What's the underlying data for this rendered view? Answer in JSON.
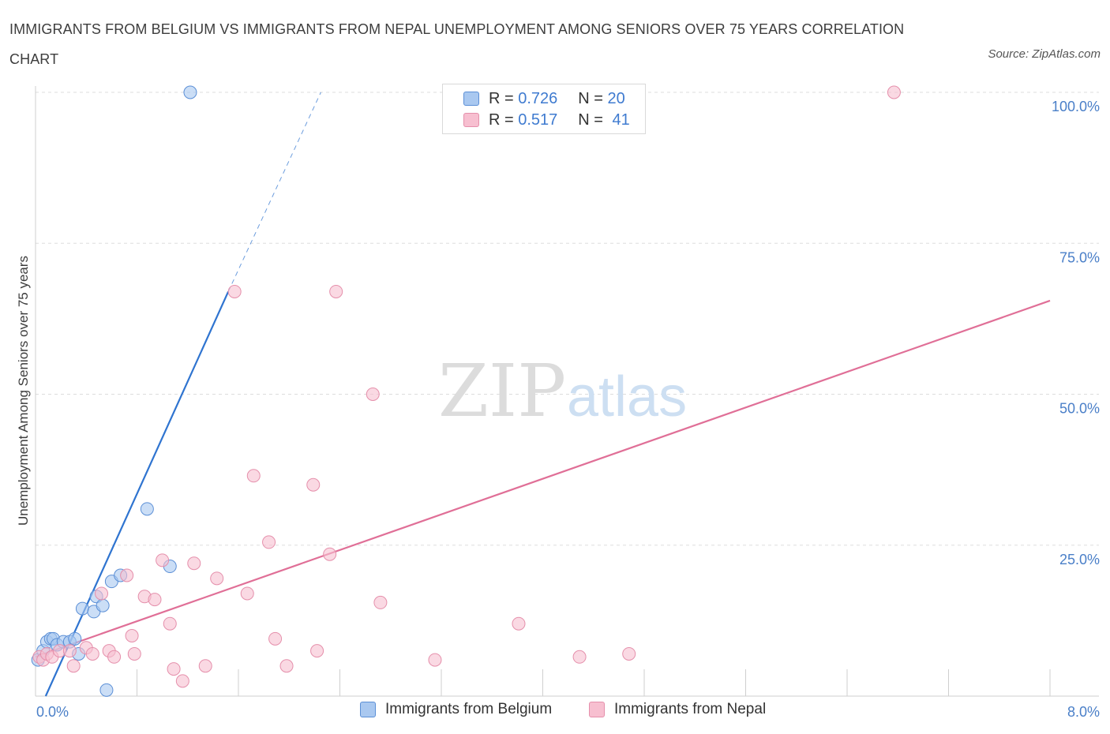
{
  "header": {
    "title": "IMMIGRANTS FROM BELGIUM VS IMMIGRANTS FROM NEPAL UNEMPLOYMENT AMONG SENIORS OVER 75 YEARS CORRELATION CHART",
    "source": "Source: ZipAtlas.com"
  },
  "legend": {
    "belgium": {
      "r_label": "R =",
      "r_value": "0.726",
      "n_label": "N =",
      "n_value": "20"
    },
    "nepal": {
      "r_label": "R =",
      "r_value": "0.517",
      "n_label": "N =",
      "n_value": "41"
    }
  },
  "bottom_legend": {
    "belgium": "Immigrants from Belgium",
    "nepal": "Immigrants from Nepal"
  },
  "watermark": {
    "zip": "ZIP",
    "atlas": "atlas"
  },
  "colors": {
    "belgium_fill": "#a9c8f0",
    "belgium_stroke": "#5b8fd6",
    "belgium_line": "#2f74d0",
    "nepal_fill": "#f7bfd0",
    "nepal_stroke": "#e58fab",
    "nepal_line": "#e06f97",
    "grid": "#dddddd",
    "tick_text": "#4a7fc8"
  },
  "chart_data": {
    "type": "scatter",
    "title": "IMMIGRANTS FROM BELGIUM VS IMMIGRANTS FROM NEPAL UNEMPLOYMENT AMONG SENIORS OVER 75 YEARS CORRELATION CHART",
    "xlabel": "",
    "ylabel": "Unemployment Among Seniors over 75 years",
    "xlim": [
      0,
      8
    ],
    "ylim": [
      0,
      100
    ],
    "x_tick_labels": [
      "0.0%",
      "8.0%"
    ],
    "y_tick_labels": [
      "100.0%",
      "75.0%",
      "50.0%",
      "25.0%"
    ],
    "y_ticks": [
      100,
      75,
      50,
      25
    ],
    "series": [
      {
        "name": "Immigrants from Belgium",
        "R": 0.726,
        "N": 20,
        "points": [
          [
            0.02,
            6.0
          ],
          [
            0.06,
            7.5
          ],
          [
            0.09,
            9.0
          ],
          [
            0.12,
            9.5
          ],
          [
            0.14,
            9.5
          ],
          [
            0.17,
            8.5
          ],
          [
            0.22,
            9.0
          ],
          [
            0.27,
            9.0
          ],
          [
            0.31,
            9.5
          ],
          [
            0.34,
            7.0
          ],
          [
            0.37,
            14.5
          ],
          [
            0.46,
            14.0
          ],
          [
            0.48,
            16.5
          ],
          [
            0.53,
            15.0
          ],
          [
            0.6,
            19.0
          ],
          [
            0.67,
            20.0
          ],
          [
            0.88,
            31.0
          ],
          [
            1.06,
            21.5
          ],
          [
            0.56,
            1.0
          ],
          [
            1.22,
            100.0
          ]
        ],
        "trend": {
          "x0": 0.08,
          "y0": 0.0,
          "x1": 1.52,
          "y1": 67.0,
          "dash_to_x": 2.25,
          "dash_to_y": 100.0
        }
      },
      {
        "name": "Immigrants from Nepal",
        "R": 0.517,
        "N": 41,
        "points": [
          [
            0.03,
            6.5
          ],
          [
            0.06,
            6.0
          ],
          [
            0.09,
            7.0
          ],
          [
            0.13,
            6.5
          ],
          [
            0.19,
            7.5
          ],
          [
            0.27,
            7.5
          ],
          [
            0.3,
            5.0
          ],
          [
            0.4,
            8.0
          ],
          [
            0.45,
            7.0
          ],
          [
            0.52,
            17.0
          ],
          [
            0.58,
            7.5
          ],
          [
            0.62,
            6.5
          ],
          [
            0.72,
            20.0
          ],
          [
            0.76,
            10.0
          ],
          [
            0.78,
            7.0
          ],
          [
            0.86,
            16.5
          ],
          [
            0.94,
            16.0
          ],
          [
            1.0,
            22.5
          ],
          [
            1.06,
            12.0
          ],
          [
            1.09,
            4.5
          ],
          [
            1.16,
            2.5
          ],
          [
            1.25,
            22.0
          ],
          [
            1.34,
            5.0
          ],
          [
            1.43,
            19.5
          ],
          [
            1.57,
            67.0
          ],
          [
            1.67,
            17.0
          ],
          [
            1.72,
            36.5
          ],
          [
            1.84,
            25.5
          ],
          [
            1.89,
            9.5
          ],
          [
            1.98,
            5.0
          ],
          [
            2.19,
            35.0
          ],
          [
            2.22,
            7.5
          ],
          [
            2.32,
            23.5
          ],
          [
            2.37,
            67.0
          ],
          [
            2.66,
            50.0
          ],
          [
            2.72,
            15.5
          ],
          [
            3.15,
            6.0
          ],
          [
            3.81,
            12.0
          ],
          [
            4.29,
            6.5
          ],
          [
            4.68,
            7.0
          ],
          [
            6.77,
            100.0
          ]
        ],
        "trend": {
          "x0": 0.0,
          "y0": 6.5,
          "x1": 8.0,
          "y1": 65.5
        }
      }
    ]
  }
}
